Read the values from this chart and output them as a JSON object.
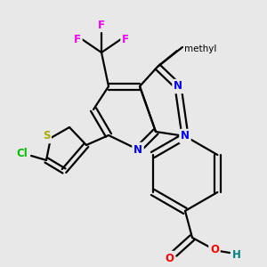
{
  "background_color": "#e8e8e8",
  "bond_color": "#000000",
  "atom_colors": {
    "F": "#ee00ee",
    "N": "#0000ff",
    "O": "#ff0000",
    "S": "#aaaa00",
    "Cl": "#00bb00",
    "C": "#000000",
    "H": "#008080"
  },
  "figsize": [
    3.0,
    3.0
  ],
  "dpi": 100
}
